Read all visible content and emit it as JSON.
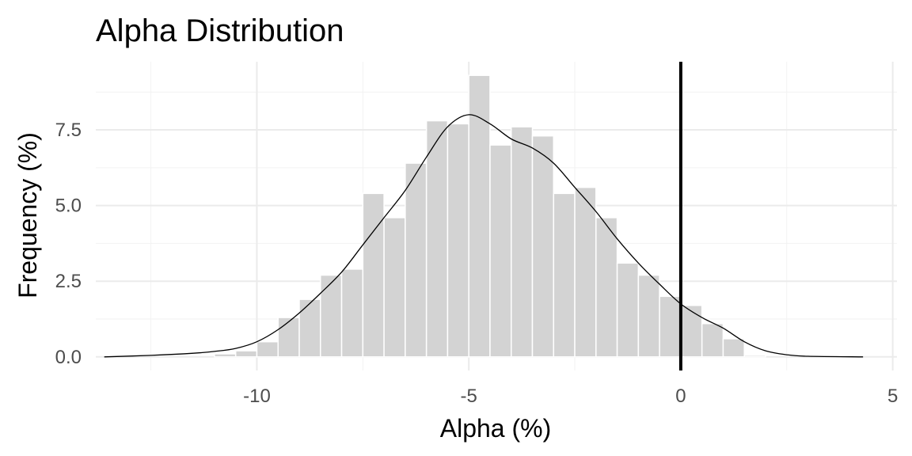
{
  "chart_data": {
    "type": "bar",
    "title": "Alpha Distribution",
    "xlabel": "Alpha (%)",
    "ylabel": "Frequency (%)",
    "xlim": [
      -13.8,
      5.1
    ],
    "ylim": [
      -0.45,
      9.75
    ],
    "x_ticks": [
      -10,
      -5,
      0,
      5
    ],
    "x_tick_labels": [
      "-10",
      "-5",
      "0",
      "5"
    ],
    "y_ticks": [
      0,
      2.5,
      5,
      7.5
    ],
    "y_tick_labels": [
      "0.0",
      "2.5",
      "5.0",
      "7.5"
    ],
    "grid": true,
    "bin_width": 0.5,
    "bins": [
      {
        "x": -10.75,
        "value": 0.1
      },
      {
        "x": -10.25,
        "value": 0.2
      },
      {
        "x": -9.75,
        "value": 0.5
      },
      {
        "x": -9.25,
        "value": 1.3
      },
      {
        "x": -8.75,
        "value": 1.9
      },
      {
        "x": -8.25,
        "value": 2.7
      },
      {
        "x": -7.75,
        "value": 2.9
      },
      {
        "x": -7.25,
        "value": 5.4
      },
      {
        "x": -6.75,
        "value": 4.6
      },
      {
        "x": -6.25,
        "value": 6.4
      },
      {
        "x": -5.75,
        "value": 7.8
      },
      {
        "x": -5.25,
        "value": 7.7
      },
      {
        "x": -4.75,
        "value": 9.3
      },
      {
        "x": -4.25,
        "value": 7.0
      },
      {
        "x": -3.75,
        "value": 7.6
      },
      {
        "x": -3.25,
        "value": 7.3
      },
      {
        "x": -2.75,
        "value": 5.4
      },
      {
        "x": -2.25,
        "value": 5.6
      },
      {
        "x": -1.75,
        "value": 4.6
      },
      {
        "x": -1.25,
        "value": 3.1
      },
      {
        "x": -0.75,
        "value": 2.7
      },
      {
        "x": -0.25,
        "value": 2.0
      },
      {
        "x": 0.25,
        "value": 1.7
      },
      {
        "x": 0.75,
        "value": 1.1
      },
      {
        "x": 1.25,
        "value": 0.6
      },
      {
        "x": 1.75,
        "value": 0.05
      }
    ],
    "density": [
      [
        -13.6,
        0.0
      ],
      [
        -12.5,
        0.05
      ],
      [
        -11.5,
        0.12
      ],
      [
        -11.0,
        0.18
      ],
      [
        -10.5,
        0.28
      ],
      [
        -10.0,
        0.5
      ],
      [
        -9.5,
        0.9
      ],
      [
        -9.0,
        1.45
      ],
      [
        -8.5,
        2.1
      ],
      [
        -8.0,
        2.8
      ],
      [
        -7.5,
        3.7
      ],
      [
        -7.0,
        4.6
      ],
      [
        -6.5,
        5.5
      ],
      [
        -6.0,
        6.6
      ],
      [
        -5.5,
        7.6
      ],
      [
        -5.0,
        8.0
      ],
      [
        -4.5,
        7.7
      ],
      [
        -4.0,
        7.2
      ],
      [
        -3.5,
        6.9
      ],
      [
        -3.0,
        6.4
      ],
      [
        -2.5,
        5.6
      ],
      [
        -2.0,
        4.8
      ],
      [
        -1.5,
        3.9
      ],
      [
        -1.0,
        3.1
      ],
      [
        -0.5,
        2.4
      ],
      [
        0.0,
        1.75
      ],
      [
        0.5,
        1.3
      ],
      [
        1.0,
        0.95
      ],
      [
        1.5,
        0.5
      ],
      [
        2.0,
        0.2
      ],
      [
        2.5,
        0.07
      ],
      [
        3.0,
        0.02
      ],
      [
        4.3,
        0.0
      ]
    ],
    "reference_line_x": 0,
    "colors": {
      "bar_fill": "#d3d3d3",
      "bar_outline": "#ffffff",
      "density_line": "#000000",
      "reference_line": "#000000",
      "grid_major": "#ebebeb",
      "grid_minor": "#f2f2f2"
    }
  }
}
